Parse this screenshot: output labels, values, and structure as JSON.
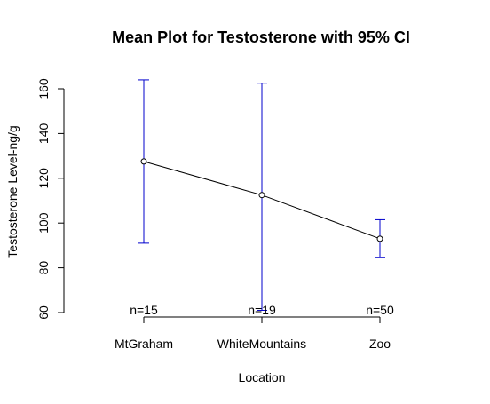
{
  "chart_data": {
    "type": "line",
    "title": "Mean Plot for Testosterone with 95% CI",
    "xlabel": "Location",
    "ylabel": "Testosterone Level-ng/g",
    "categories": [
      "MtGraham",
      "WhiteMountains",
      "Zoo"
    ],
    "series": [
      {
        "means": [
          127.5,
          112.5,
          93
        ],
        "ci_lower": [
          91,
          61,
          84.5
        ],
        "ci_upper": [
          164,
          162.5,
          101.5
        ]
      }
    ],
    "n_labels": [
      "n=15",
      "n=19",
      "n=50"
    ],
    "ylim": [
      60,
      166
    ],
    "yticks": [
      60,
      80,
      100,
      120,
      140,
      160
    ],
    "grid": false,
    "colors": {
      "line": "#000000",
      "ci": "#0000cc",
      "point_fill": "#ffffff"
    }
  }
}
